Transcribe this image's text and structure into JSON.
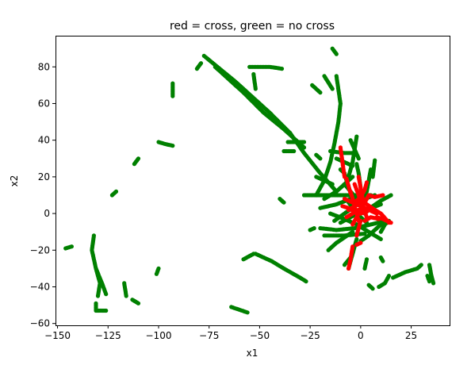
{
  "chart_data": {
    "type": "scatter",
    "title": "red = cross, green = no cross",
    "xlabel": "x1",
    "ylabel": "x2",
    "xlim": [
      -151,
      44
    ],
    "ylim": [
      -61,
      97
    ],
    "xticks": [
      -150,
      -125,
      -100,
      -75,
      -50,
      -25,
      0,
      25
    ],
    "yticks": [
      -60,
      -40,
      -20,
      0,
      20,
      40,
      60,
      80
    ],
    "x_tick_labels": [
      "−150",
      "−125",
      "−100",
      "−75",
      "−50",
      "−25",
      "0",
      "25"
    ],
    "y_tick_labels": [
      "−60",
      "−40",
      "−20",
      "0",
      "20",
      "40",
      "60",
      "80"
    ],
    "grid": false,
    "colors": {
      "cross": "#ff0000",
      "no_cross": "#008000"
    },
    "series": [
      {
        "key": "no_cross",
        "color": "#008000",
        "segments": [
          [
            [
              -77.5,
              86
            ],
            [
              -62,
              72
            ],
            [
              -45,
              55
            ],
            [
              -35,
              44
            ],
            [
              -28,
              33
            ],
            [
              -20,
              22
            ],
            [
              -12,
              12
            ]
          ],
          [
            [
              -72,
              80
            ],
            [
              -58,
              66
            ],
            [
              -48,
              55
            ],
            [
              -38,
              46
            ],
            [
              -28,
              36
            ]
          ],
          [
            [
              -132,
              -12
            ],
            [
              -133,
              -20
            ],
            [
              -131,
              -30
            ],
            [
              -129,
              -38
            ],
            [
              -130,
              -45
            ]
          ],
          [
            [
              -131,
              -30
            ],
            [
              -128,
              -38
            ],
            [
              -126,
              -44
            ]
          ],
          [
            [
              -131,
              -49
            ],
            [
              -131,
              -53
            ],
            [
              -126,
              -53
            ]
          ],
          [
            [
              -146,
              -19
            ],
            [
              -143,
              -18
            ]
          ],
          [
            [
              -123,
              10
            ],
            [
              -121,
              12
            ]
          ],
          [
            [
              -112,
              27
            ],
            [
              -110,
              30
            ]
          ],
          [
            [
              -100,
              39
            ],
            [
              -97,
              38
            ],
            [
              -93,
              37
            ]
          ],
          [
            [
              -100,
              -30
            ],
            [
              -101,
              -33
            ]
          ],
          [
            [
              -93,
              71
            ],
            [
              -93,
              64
            ]
          ],
          [
            [
              -81,
              79
            ],
            [
              -79,
              82
            ]
          ],
          [
            [
              -117,
              -38
            ],
            [
              -116,
              -45
            ]
          ],
          [
            [
              -113,
              -47
            ],
            [
              -110,
              -49
            ]
          ],
          [
            [
              -64,
              -51
            ],
            [
              -56,
              -54
            ]
          ],
          [
            [
              -58,
              -25
            ],
            [
              -53,
              -22
            ]
          ],
          [
            [
              -52,
              -22
            ],
            [
              -44,
              -26
            ],
            [
              -38,
              -30
            ],
            [
              -30,
              -35
            ],
            [
              -27,
              -37
            ]
          ],
          [
            [
              -55,
              80
            ],
            [
              -45,
              80
            ],
            [
              -39,
              79
            ]
          ],
          [
            [
              -53,
              76
            ],
            [
              -52,
              68
            ]
          ],
          [
            [
              -38,
              34
            ],
            [
              -33,
              34
            ]
          ],
          [
            [
              -36,
              39
            ],
            [
              -28,
              39
            ]
          ],
          [
            [
              -40,
              8
            ],
            [
              -38,
              6
            ]
          ],
          [
            [
              -25,
              -9
            ],
            [
              -23,
              -8
            ]
          ],
          [
            [
              -18,
              75
            ],
            [
              -14,
              68
            ]
          ],
          [
            [
              -24,
              70
            ],
            [
              -20,
              66
            ]
          ],
          [
            [
              -14,
              90
            ],
            [
              -12,
              87
            ]
          ],
          [
            [
              -22,
              10
            ],
            [
              -18,
              18
            ],
            [
              -15,
              28
            ],
            [
              -13,
              38
            ],
            [
              -11,
              50
            ],
            [
              -10,
              60
            ],
            [
              -12,
              75
            ]
          ],
          [
            [
              -28,
              10
            ],
            [
              -20,
              10
            ],
            [
              -10,
              10
            ],
            [
              0,
              10
            ],
            [
              5,
              10
            ]
          ],
          [
            [
              -20,
              3
            ],
            [
              -12,
              5
            ],
            [
              -5,
              8
            ],
            [
              0,
              10
            ]
          ],
          [
            [
              -20,
              -8
            ],
            [
              -12,
              -9
            ],
            [
              -3,
              -8
            ],
            [
              5,
              -6
            ],
            [
              12,
              -4
            ]
          ],
          [
            [
              -18,
              -12
            ],
            [
              -8,
              -12
            ],
            [
              2,
              -11
            ]
          ],
          [
            [
              -15,
              34
            ],
            [
              -8,
              33
            ],
            [
              -3,
              33
            ]
          ],
          [
            [
              -5,
              40
            ],
            [
              -3,
              35
            ],
            [
              -1,
              30
            ]
          ],
          [
            [
              -2,
              42
            ],
            [
              -4,
              28
            ],
            [
              -6,
              20
            ]
          ],
          [
            [
              -2,
              27
            ],
            [
              -1,
              22
            ],
            [
              0,
              14
            ]
          ],
          [
            [
              -18,
              8
            ],
            [
              -12,
              12
            ],
            [
              -8,
              16
            ],
            [
              -4,
              20
            ]
          ],
          [
            [
              -16,
              -20
            ],
            [
              -12,
              -16
            ],
            [
              -8,
              -13
            ],
            [
              -4,
              -10
            ]
          ],
          [
            [
              -10,
              24
            ],
            [
              -8,
              22
            ],
            [
              -7,
              18
            ]
          ],
          [
            [
              -12,
              30
            ],
            [
              -8,
              28
            ],
            [
              -4,
              26
            ]
          ],
          [
            [
              -13,
              -4
            ],
            [
              -8,
              0
            ],
            [
              -3,
              4
            ],
            [
              2,
              8
            ],
            [
              7,
              10
            ]
          ],
          [
            [
              -15,
              0
            ],
            [
              -8,
              -3
            ],
            [
              -2,
              -6
            ],
            [
              4,
              -10
            ],
            [
              10,
              -14
            ]
          ],
          [
            [
              2,
              0
            ],
            [
              6,
              4
            ],
            [
              10,
              7
            ],
            [
              15,
              10
            ]
          ],
          [
            [
              0,
              -15
            ],
            [
              4,
              -12
            ],
            [
              8,
              -8
            ],
            [
              12,
              -4
            ]
          ],
          [
            [
              10,
              -10
            ],
            [
              12,
              -6
            ],
            [
              14,
              -4
            ]
          ],
          [
            [
              -6,
              -30
            ],
            [
              -4,
              -22
            ],
            [
              -2,
              -14
            ]
          ],
          [
            [
              5,
              24
            ],
            [
              4,
              18
            ],
            [
              3,
              12
            ]
          ],
          [
            [
              7,
              29
            ],
            [
              6,
              20
            ]
          ],
          [
            [
              -8,
              16
            ],
            [
              -5,
              12
            ],
            [
              -2,
              8
            ],
            [
              0,
              5
            ]
          ],
          [
            [
              -22,
              20
            ],
            [
              -18,
              18
            ],
            [
              -14,
              16
            ]
          ],
          [
            [
              -22,
              32
            ],
            [
              -20,
              30
            ]
          ],
          [
            [
              -8,
              -28
            ],
            [
              -5,
              -24
            ]
          ],
          [
            [
              2,
              -30
            ],
            [
              3,
              -25
            ]
          ],
          [
            [
              4,
              -39
            ],
            [
              6,
              -41
            ]
          ],
          [
            [
              9,
              -40
            ],
            [
              12,
              -38
            ],
            [
              14,
              -34
            ]
          ],
          [
            [
              16,
              -35
            ],
            [
              22,
              -32
            ],
            [
              28,
              -30
            ],
            [
              30,
              -28
            ]
          ],
          [
            [
              10,
              -24
            ],
            [
              11,
              -26
            ]
          ],
          [
            [
              34,
              -28
            ],
            [
              35,
              -34
            ],
            [
              36,
              -38
            ]
          ],
          [
            [
              33,
              -34
            ],
            [
              34,
              -37
            ]
          ],
          [
            [
              -10,
              -5
            ],
            [
              -5,
              -2
            ],
            [
              0,
              1
            ],
            [
              5,
              3
            ],
            [
              10,
              5
            ]
          ],
          [
            [
              -6,
              6
            ],
            [
              -3,
              2
            ],
            [
              0,
              -2
            ],
            [
              3,
              -5
            ]
          ]
        ]
      },
      {
        "key": "cross",
        "color": "#ff0000",
        "segments": [
          [
            [
              -10,
              36
            ],
            [
              -9,
              28
            ],
            [
              -8,
              20
            ]
          ],
          [
            [
              -7,
              19
            ],
            [
              -6,
              15
            ],
            [
              -5,
              11
            ]
          ],
          [
            [
              -5,
              12
            ],
            [
              -4,
              8
            ],
            [
              -3,
              4
            ],
            [
              -2,
              0
            ],
            [
              -1,
              -4
            ]
          ],
          [
            [
              -3,
              16
            ],
            [
              -1,
              10
            ],
            [
              1,
              4
            ],
            [
              3,
              -2
            ]
          ],
          [
            [
              -2,
              13
            ],
            [
              0,
              8
            ],
            [
              3,
              5
            ],
            [
              7,
              2
            ],
            [
              10,
              0
            ],
            [
              14,
              -5
            ]
          ],
          [
            [
              -8,
              8
            ],
            [
              -4,
              6
            ],
            [
              0,
              4
            ],
            [
              4,
              2
            ],
            [
              8,
              0
            ]
          ],
          [
            [
              -6,
              2
            ],
            [
              -3,
              4
            ],
            [
              0,
              6
            ],
            [
              3,
              8
            ]
          ],
          [
            [
              -4,
              -6
            ],
            [
              -2,
              -2
            ],
            [
              0,
              2
            ],
            [
              2,
              6
            ],
            [
              4,
              10
            ]
          ],
          [
            [
              -2,
              -12
            ],
            [
              -1,
              -8
            ],
            [
              0,
              -4
            ]
          ],
          [
            [
              0,
              -16
            ],
            [
              -2,
              -17
            ]
          ],
          [
            [
              -6,
              -30
            ],
            [
              -5,
              -25
            ],
            [
              -4,
              -18
            ]
          ],
          [
            [
              4,
              10
            ],
            [
              7,
              9
            ],
            [
              11,
              10
            ]
          ],
          [
            [
              8,
              -2
            ],
            [
              11,
              -3
            ],
            [
              15,
              -5
            ]
          ],
          [
            [
              -1,
              20
            ],
            [
              0,
              14
            ],
            [
              1,
              8
            ]
          ],
          [
            [
              -9,
              4
            ],
            [
              -6,
              3
            ],
            [
              -3,
              1
            ],
            [
              0,
              0
            ],
            [
              3,
              1
            ]
          ],
          [
            [
              2,
              -4
            ],
            [
              5,
              -2
            ],
            [
              9,
              -3
            ]
          ],
          [
            [
              -3,
              6
            ],
            [
              0,
              9
            ],
            [
              2,
              13
            ],
            [
              3,
              17
            ]
          ],
          [
            [
              -7,
              -2
            ],
            [
              -4,
              0
            ],
            [
              -1,
              2
            ],
            [
              2,
              3
            ]
          ]
        ]
      }
    ]
  }
}
